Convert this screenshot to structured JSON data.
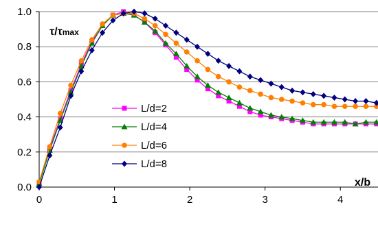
{
  "chart_data": {
    "type": "line",
    "ylabel_main": "τ/τ",
    "ylabel_sub": "max",
    "xlabel": "x/b",
    "xlim": [
      0,
      4.5
    ],
    "ylim": [
      0,
      1.0
    ],
    "xticks": [
      "0",
      "1",
      "2",
      "3",
      "4"
    ],
    "yticks": [
      "0.0",
      "0.2",
      "0.4",
      "0.6",
      "0.8",
      "1.0"
    ],
    "grid": "horizontal",
    "legend_placement": "center-left",
    "series": [
      {
        "name": "L/d=2",
        "color": "#ff00ff",
        "marker": "square",
        "x": [
          0.0,
          0.14,
          0.28,
          0.42,
          0.56,
          0.7,
          0.84,
          0.98,
          1.12,
          1.26,
          1.4,
          1.54,
          1.68,
          1.82,
          1.96,
          2.1,
          2.24,
          2.38,
          2.52,
          2.66,
          2.8,
          2.94,
          3.08,
          3.22,
          3.36,
          3.5,
          3.64,
          3.78,
          3.92,
          4.06,
          4.2,
          4.34,
          4.48
        ],
        "y": [
          0.02,
          0.22,
          0.39,
          0.55,
          0.7,
          0.83,
          0.92,
          0.98,
          1.0,
          0.98,
          0.94,
          0.88,
          0.81,
          0.74,
          0.67,
          0.61,
          0.56,
          0.52,
          0.49,
          0.46,
          0.43,
          0.41,
          0.4,
          0.39,
          0.38,
          0.37,
          0.36,
          0.36,
          0.36,
          0.36,
          0.36,
          0.36,
          0.36
        ]
      },
      {
        "name": "L/d=4",
        "color": "#008000",
        "marker": "triangle",
        "x": [
          0.0,
          0.14,
          0.28,
          0.42,
          0.56,
          0.7,
          0.84,
          0.98,
          1.12,
          1.26,
          1.4,
          1.54,
          1.68,
          1.82,
          1.96,
          2.1,
          2.24,
          2.38,
          2.52,
          2.66,
          2.8,
          2.94,
          3.08,
          3.22,
          3.36,
          3.5,
          3.64,
          3.78,
          3.92,
          4.06,
          4.2,
          4.34,
          4.48
        ],
        "y": [
          0.02,
          0.21,
          0.38,
          0.54,
          0.69,
          0.82,
          0.92,
          0.98,
          0.99,
          0.98,
          0.94,
          0.89,
          0.82,
          0.76,
          0.69,
          0.63,
          0.58,
          0.54,
          0.51,
          0.48,
          0.45,
          0.43,
          0.41,
          0.4,
          0.39,
          0.38,
          0.37,
          0.37,
          0.37,
          0.37,
          0.36,
          0.37,
          0.37
        ]
      },
      {
        "name": "L/d=6",
        "color": "#ff7f00",
        "marker": "circle",
        "x": [
          0.0,
          0.14,
          0.28,
          0.42,
          0.56,
          0.7,
          0.84,
          0.98,
          1.12,
          1.26,
          1.4,
          1.54,
          1.68,
          1.82,
          1.96,
          2.1,
          2.24,
          2.38,
          2.52,
          2.66,
          2.8,
          2.94,
          3.08,
          3.22,
          3.36,
          3.5,
          3.64,
          3.78,
          3.92,
          4.06,
          4.2,
          4.34,
          4.48
        ],
        "y": [
          0.03,
          0.23,
          0.42,
          0.58,
          0.72,
          0.84,
          0.93,
          0.98,
          0.99,
          0.99,
          0.96,
          0.92,
          0.87,
          0.82,
          0.77,
          0.72,
          0.67,
          0.63,
          0.6,
          0.57,
          0.55,
          0.53,
          0.51,
          0.5,
          0.49,
          0.48,
          0.47,
          0.47,
          0.46,
          0.46,
          0.46,
          0.46,
          0.46
        ]
      },
      {
        "name": "L/d=8",
        "color": "#000080",
        "marker": "diamond",
        "x": [
          0.0,
          0.14,
          0.28,
          0.42,
          0.56,
          0.7,
          0.84,
          0.98,
          1.12,
          1.26,
          1.4,
          1.54,
          1.68,
          1.82,
          1.96,
          2.1,
          2.24,
          2.38,
          2.52,
          2.66,
          2.8,
          2.94,
          3.08,
          3.22,
          3.36,
          3.5,
          3.64,
          3.78,
          3.92,
          4.06,
          4.2,
          4.34,
          4.48
        ],
        "y": [
          0.0,
          0.18,
          0.34,
          0.52,
          0.66,
          0.78,
          0.88,
          0.95,
          0.99,
          1.0,
          0.99,
          0.96,
          0.92,
          0.88,
          0.84,
          0.8,
          0.76,
          0.72,
          0.69,
          0.66,
          0.63,
          0.61,
          0.59,
          0.57,
          0.55,
          0.54,
          0.53,
          0.52,
          0.51,
          0.5,
          0.49,
          0.49,
          0.48
        ]
      }
    ]
  }
}
